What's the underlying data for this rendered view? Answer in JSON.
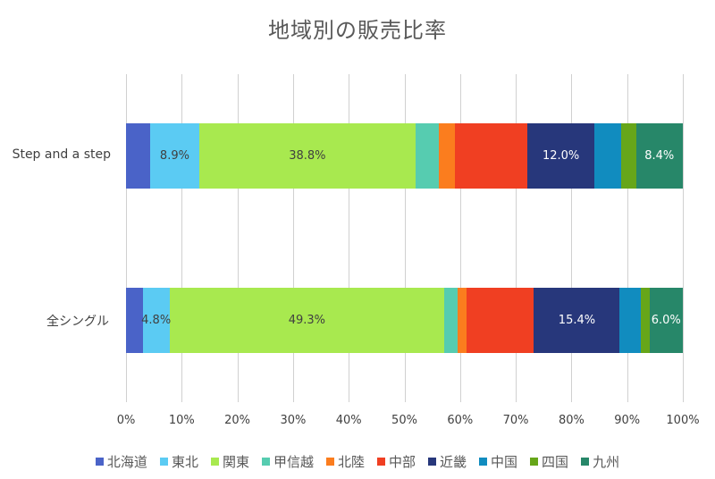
{
  "chart_data": {
    "type": "bar",
    "orientation": "horizontal",
    "stacked": "percent",
    "title": "地域別の販売比率",
    "xlabel": "",
    "ylabel": "",
    "xlim": [
      0,
      100
    ],
    "xticks": [
      "0%",
      "10%",
      "20%",
      "30%",
      "40%",
      "50%",
      "60%",
      "70%",
      "80%",
      "90%",
      "100%"
    ],
    "grid": true,
    "legend_position": "bottom",
    "categories": [
      "Step and a step",
      "全シングル"
    ],
    "series": [
      {
        "name": "北海道",
        "color": "#4a63c8",
        "values": [
          4.3,
          3.0
        ],
        "labels": [
          "",
          ""
        ],
        "label_color": "#404040"
      },
      {
        "name": "東北",
        "color": "#5bcbf3",
        "values": [
          8.9,
          4.8
        ],
        "labels": [
          "8.9%",
          "4.8%"
        ],
        "label_color": "#404040"
      },
      {
        "name": "関東",
        "color": "#a8e94f",
        "values": [
          38.8,
          49.3
        ],
        "labels": [
          "38.8%",
          "49.3%"
        ],
        "label_color": "#404040"
      },
      {
        "name": "甲信越",
        "color": "#56ccb0",
        "values": [
          4.3,
          2.4
        ],
        "labels": [
          "",
          ""
        ],
        "label_color": "#404040"
      },
      {
        "name": "北陸",
        "color": "#fb7d1e",
        "values": [
          2.8,
          1.6
        ],
        "labels": [
          "",
          ""
        ],
        "label_color": "#404040"
      },
      {
        "name": "中部",
        "color": "#f03f22",
        "values": [
          13.1,
          12.1
        ],
        "labels": [
          "",
          ""
        ],
        "label_color": "#404040"
      },
      {
        "name": "近畿",
        "color": "#27377b",
        "values": [
          12.0,
          15.4
        ],
        "labels": [
          "12.0%",
          "15.4%"
        ],
        "label_color": "#ffffff"
      },
      {
        "name": "中国",
        "color": "#118cbf",
        "values": [
          4.8,
          3.8
        ],
        "labels": [
          "",
          ""
        ],
        "label_color": "#404040"
      },
      {
        "name": "四国",
        "color": "#66a619",
        "values": [
          2.7,
          1.5
        ],
        "labels": [
          "",
          ""
        ],
        "label_color": "#404040"
      },
      {
        "name": "九州",
        "color": "#278769",
        "values": [
          8.4,
          6.0
        ],
        "labels": [
          "8.4%",
          "6.0%"
        ],
        "label_color": "#ffffff"
      }
    ]
  }
}
